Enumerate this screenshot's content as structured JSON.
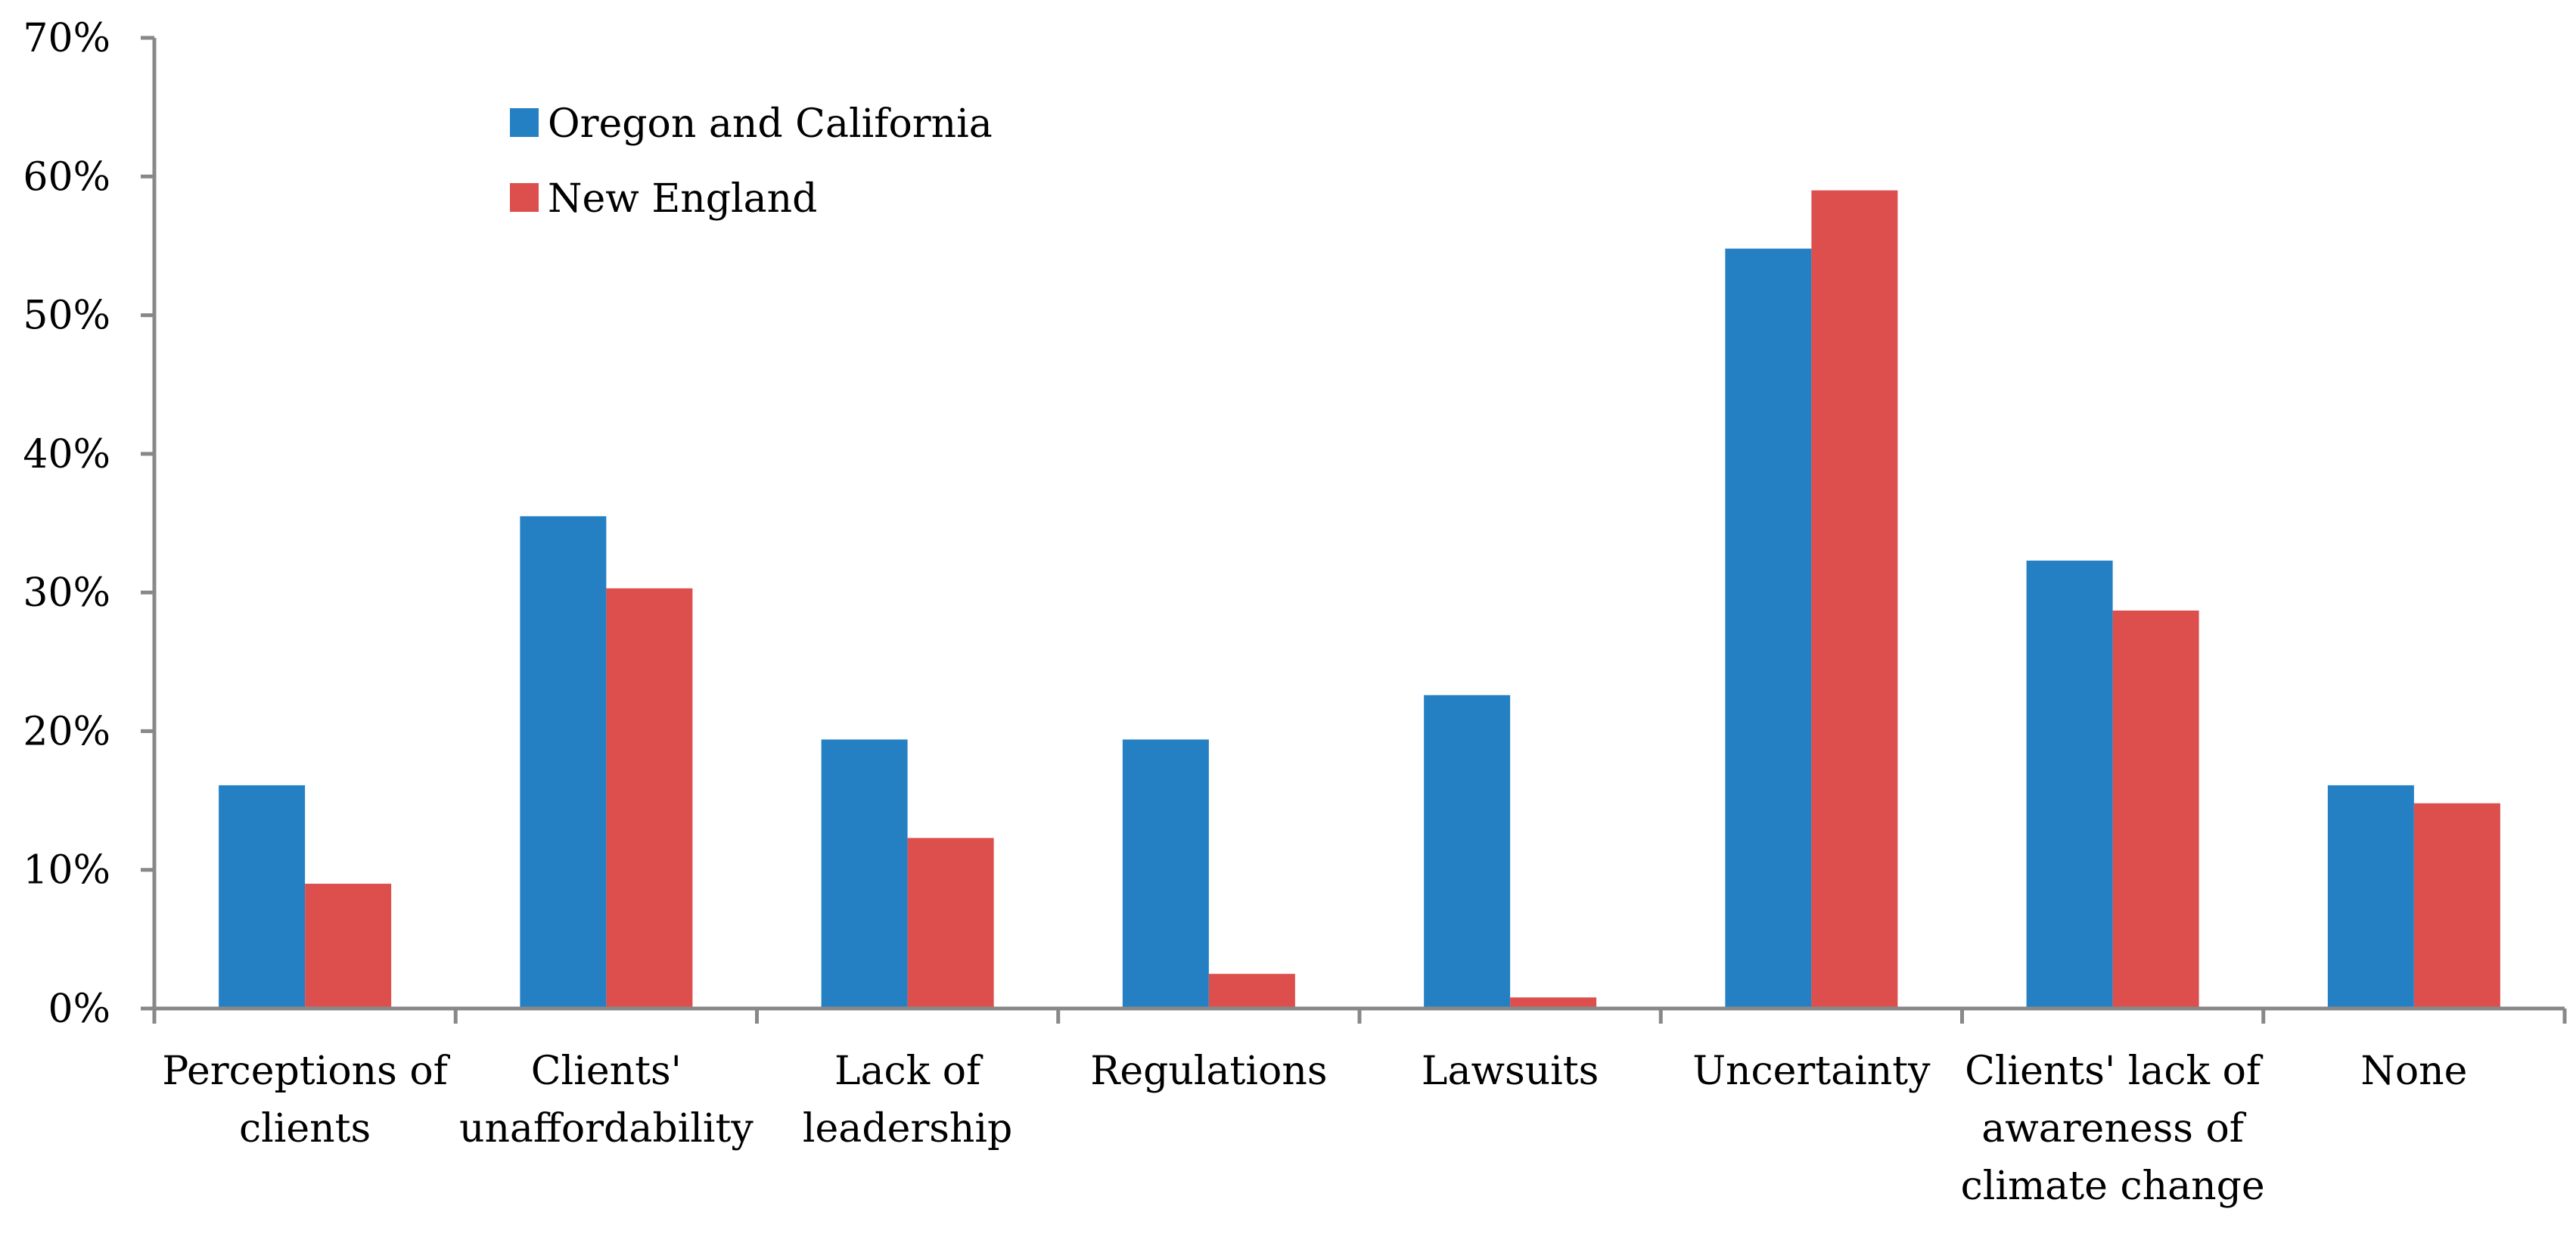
{
  "chart_data": {
    "type": "bar",
    "title": "",
    "xlabel": "",
    "ylabel": "",
    "ylim": [
      0,
      70
    ],
    "yticks": [
      0,
      10,
      20,
      30,
      40,
      50,
      60,
      70
    ],
    "ytick_labels": [
      "0%",
      "10%",
      "20%",
      "30%",
      "40%",
      "50%",
      "60%",
      "70%"
    ],
    "grid": false,
    "legend_position": "top-left",
    "categories": [
      [
        "Perceptions of",
        "clients"
      ],
      [
        "Clients'",
        "unaffordability"
      ],
      [
        "Lack of",
        "leadership"
      ],
      [
        "Regulations"
      ],
      [
        "Lawsuits"
      ],
      [
        "Uncertainty"
      ],
      [
        "Clients' lack of",
        "awareness of",
        "climate change"
      ],
      [
        "None"
      ]
    ],
    "series": [
      {
        "name": "Oregon and California",
        "color": "#2580c3",
        "values": [
          16.1,
          35.5,
          19.4,
          19.4,
          22.6,
          54.8,
          32.3,
          16.1
        ]
      },
      {
        "name": "New England",
        "color": "#dc4f4d",
        "values": [
          9.0,
          30.3,
          12.3,
          2.5,
          0.8,
          59.0,
          28.7,
          14.8
        ]
      }
    ]
  }
}
